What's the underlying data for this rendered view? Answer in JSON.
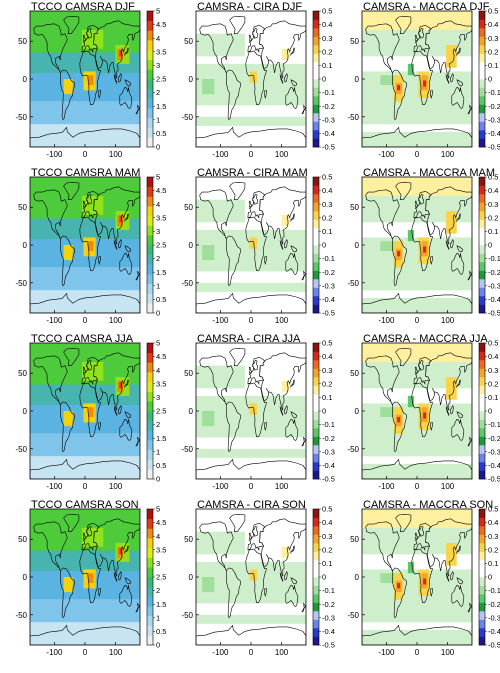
{
  "panels": [
    {
      "title": "TCCO CAMSRA DJF",
      "kind": "tcco",
      "season": "DJF"
    },
    {
      "title": "CAMSRA  - CIRA DJF",
      "kind": "cira",
      "season": "DJF"
    },
    {
      "title": "CAMSRA  - MACCRA DJF",
      "kind": "maccra",
      "season": "DJF"
    },
    {
      "title": "TCCO CAMSRA MAM",
      "kind": "tcco",
      "season": "MAM"
    },
    {
      "title": "CAMSRA  - CIRA MAM",
      "kind": "cira",
      "season": "MAM"
    },
    {
      "title": "CAMSRA  - MACCRA MAM",
      "kind": "maccra",
      "season": "MAM"
    },
    {
      "title": "TCCO CAMSRA JJA",
      "kind": "tcco",
      "season": "JJA"
    },
    {
      "title": "CAMSRA  - CIRA JJA",
      "kind": "cira",
      "season": "JJA"
    },
    {
      "title": "CAMSRA  - MACCRA JJA",
      "kind": "maccra",
      "season": "JJA"
    },
    {
      "title": "TCCO CAMSRA SON",
      "kind": "tcco",
      "season": "SON"
    },
    {
      "title": "CAMSRA  - CIRA SON",
      "kind": "cira",
      "season": "SON"
    },
    {
      "title": "CAMSRA  - MACCRA SON",
      "kind": "maccra",
      "season": "SON"
    }
  ],
  "axes": {
    "x_ticks": [
      "-100",
      "0",
      "100"
    ],
    "y_ticks": [
      "50",
      "0",
      "-50"
    ]
  },
  "colorbars": {
    "tcco": {
      "labels": [
        "5",
        "4.5",
        "4",
        "3.5",
        "3",
        "2.5",
        "2",
        "1.5",
        "1",
        "0.5",
        "0"
      ],
      "colors": [
        "#f0f0f0",
        "#c6e4f2",
        "#a9d8ef",
        "#7fc4ea",
        "#5ab3e0",
        "#48b4b0",
        "#3cb878",
        "#4ecb3a",
        "#8ee31a",
        "#d9ef14",
        "#f6d20c",
        "#f08a10",
        "#e03a10",
        "#b01010"
      ]
    },
    "diff": {
      "labels": [
        "0.5",
        "0.4",
        "0.3",
        "0.2",
        "0.1",
        "0",
        "-0.1",
        "-0.2",
        "-0.3",
        "-0.4",
        "-0.5"
      ],
      "colors": [
        "#1a1a8c",
        "#2a3ad0",
        "#6a84ea",
        "#b8c4f4",
        "#1f9a3a",
        "#5cc86a",
        "#9fdf9a",
        "#cfefcc",
        "#ffffff",
        "#ffffff",
        "#fff0a0",
        "#f8d44a",
        "#f4a42a",
        "#ec6a22",
        "#d42a1a",
        "#8c1410"
      ]
    }
  },
  "colors": {
    "land_outline": "#000000",
    "ocean_tcco_light": "#5ab3e0",
    "tropics_tcco": "#48b4b0",
    "nh_tcco": "#4ecb3a",
    "diff_background_green": "#cfefcc",
    "diff_white": "#ffffff"
  }
}
